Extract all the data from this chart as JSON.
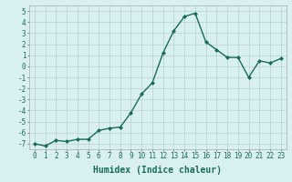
{
  "x": [
    0,
    1,
    2,
    3,
    4,
    5,
    6,
    7,
    8,
    9,
    10,
    11,
    12,
    13,
    14,
    15,
    16,
    17,
    18,
    19,
    20,
    21,
    22,
    23
  ],
  "y": [
    -7,
    -7.2,
    -6.7,
    -6.8,
    -6.6,
    -6.6,
    -5.8,
    -5.6,
    -5.5,
    -4.2,
    -2.5,
    -1.5,
    1.2,
    3.2,
    4.5,
    4.8,
    2.2,
    1.5,
    0.8,
    0.8,
    -1.0,
    0.5,
    0.3,
    0.7
  ],
  "line_color": "#1a6b5a",
  "marker": "D",
  "marker_size": 2,
  "bg_color": "#d9f0f0",
  "grid_color": "#b8d0d0",
  "xlabel": "Humidex (Indice chaleur)",
  "xlim": [
    -0.5,
    23.5
  ],
  "ylim": [
    -7.5,
    5.5
  ],
  "xticks": [
    0,
    1,
    2,
    3,
    4,
    5,
    6,
    7,
    8,
    9,
    10,
    11,
    12,
    13,
    14,
    15,
    16,
    17,
    18,
    19,
    20,
    21,
    22,
    23
  ],
  "yticks": [
    -7,
    -6,
    -5,
    -4,
    -3,
    -2,
    -1,
    0,
    1,
    2,
    3,
    4,
    5
  ],
  "tick_fontsize": 5.5,
  "xlabel_fontsize": 7,
  "line_width": 1.0
}
